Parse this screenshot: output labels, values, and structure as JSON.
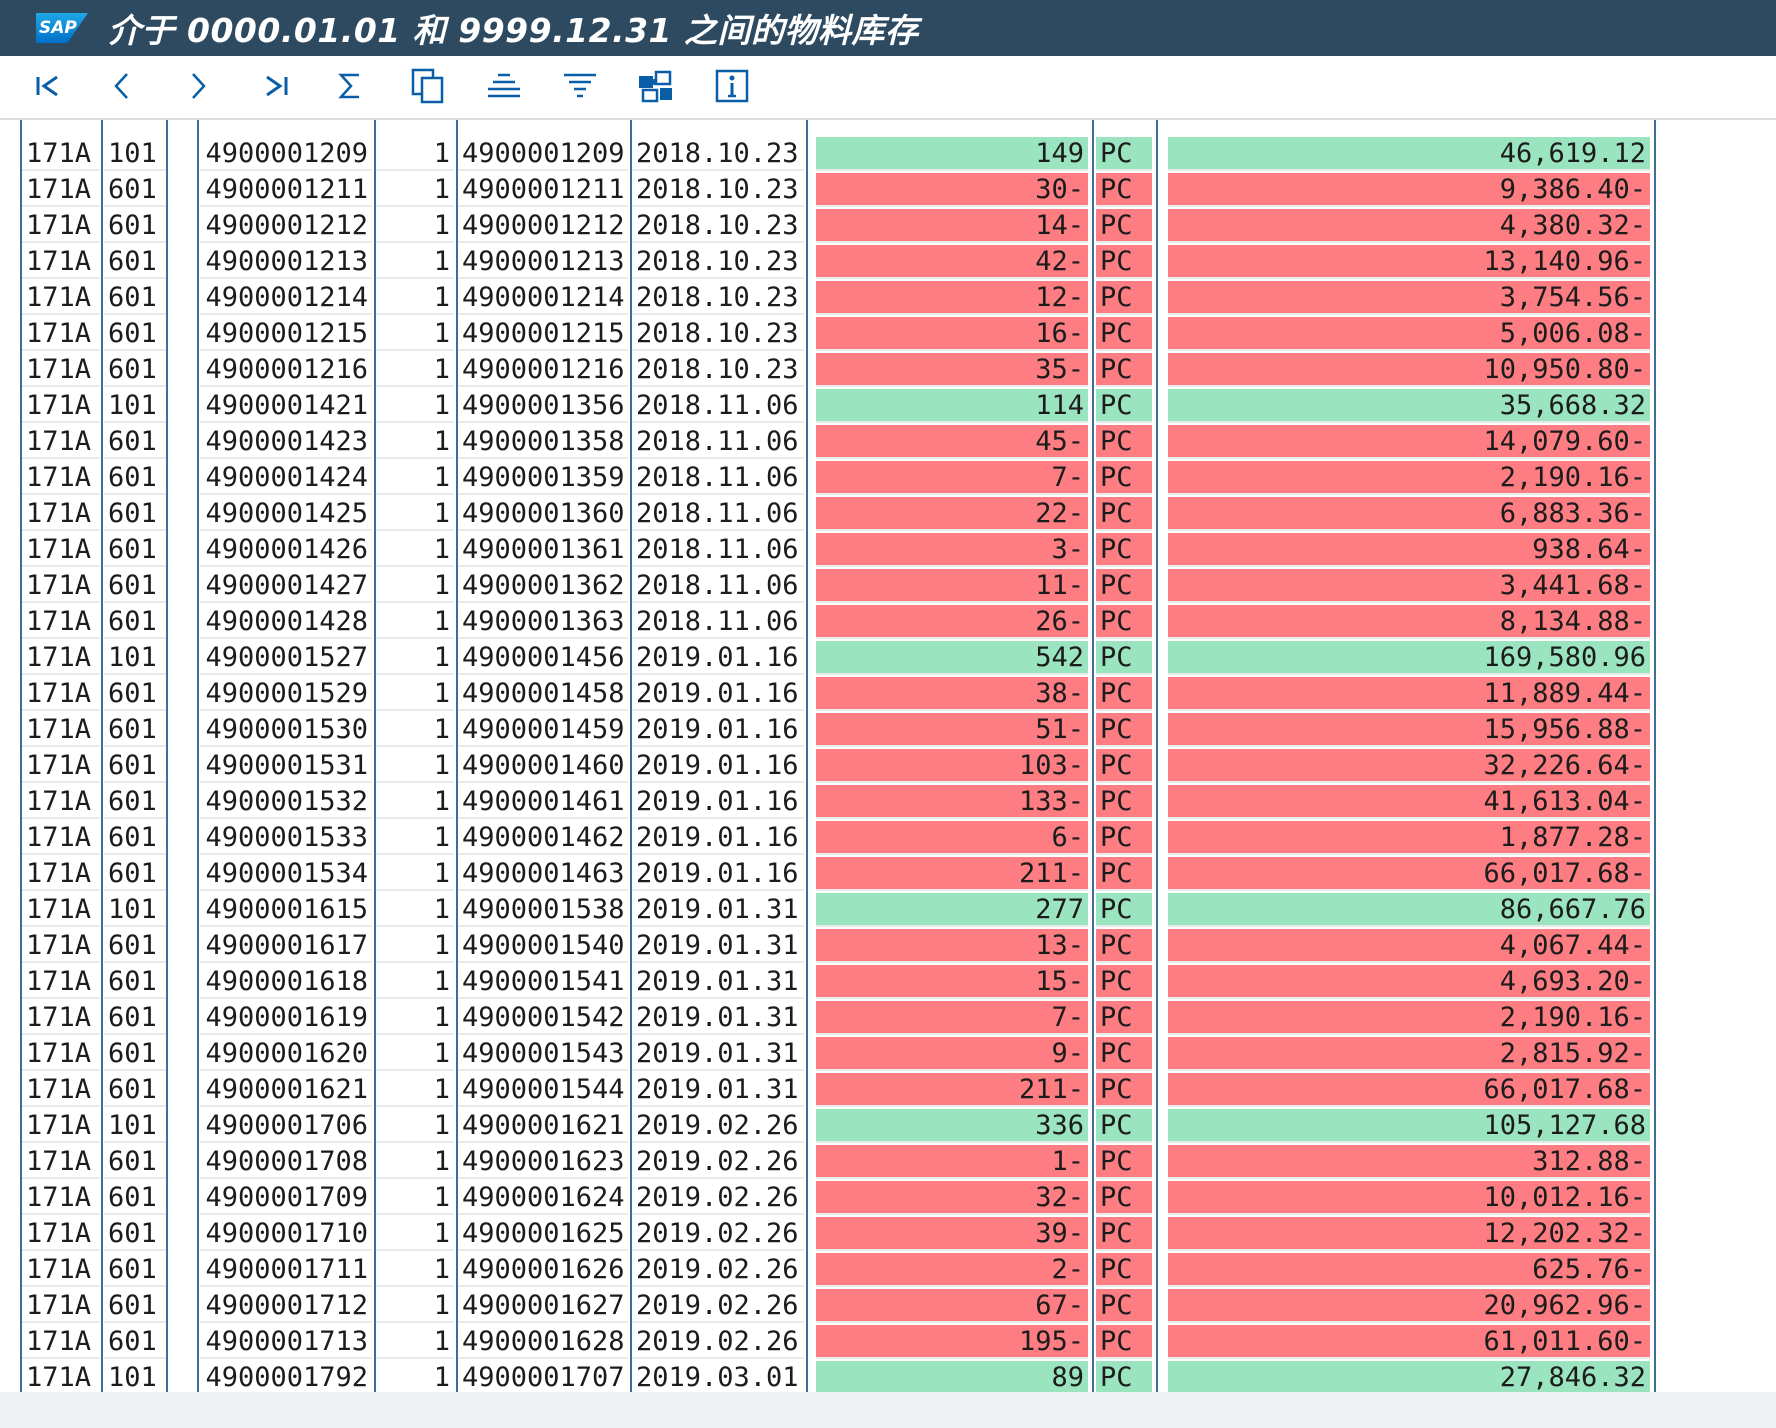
{
  "window": {
    "logo_text": "SAP",
    "title": "介于 0000.01.01 和 9999.12.31 之间的物料库存"
  },
  "toolbar": {
    "buttons": [
      {
        "name": "first-page-button",
        "icon": "first-page-icon"
      },
      {
        "name": "previous-page-button",
        "icon": "previous-page-icon"
      },
      {
        "name": "next-page-button",
        "icon": "next-page-icon"
      },
      {
        "name": "last-page-button",
        "icon": "last-page-icon"
      },
      {
        "name": "sum-button",
        "icon": "sigma-icon"
      },
      {
        "name": "copy-button",
        "icon": "copy-icon"
      },
      {
        "name": "center-align-button",
        "icon": "center-align-icon"
      },
      {
        "name": "filter-button",
        "icon": "filter-icon"
      },
      {
        "name": "layout-button",
        "icon": "layout-puzzle-icon"
      },
      {
        "name": "info-button",
        "icon": "info-icon"
      }
    ]
  },
  "colors": {
    "positive_row": "#9be4c0",
    "negative_row": "#fd7d82",
    "title_bar": "#2d4a60",
    "accent": "#0a5ea8"
  },
  "rows": [
    {
      "plant": "171A",
      "mvt": "101",
      "doc": "4900001209",
      "item": "1",
      "ref": "4900001209",
      "date": "2018.10.23",
      "qty": "149",
      "unit": "PC",
      "amount": "46,619.12",
      "sign": "pos"
    },
    {
      "plant": "171A",
      "mvt": "601",
      "doc": "4900001211",
      "item": "1",
      "ref": "4900001211",
      "date": "2018.10.23",
      "qty": "30-",
      "unit": "PC",
      "amount": "9,386.40-",
      "sign": "neg"
    },
    {
      "plant": "171A",
      "mvt": "601",
      "doc": "4900001212",
      "item": "1",
      "ref": "4900001212",
      "date": "2018.10.23",
      "qty": "14-",
      "unit": "PC",
      "amount": "4,380.32-",
      "sign": "neg"
    },
    {
      "plant": "171A",
      "mvt": "601",
      "doc": "4900001213",
      "item": "1",
      "ref": "4900001213",
      "date": "2018.10.23",
      "qty": "42-",
      "unit": "PC",
      "amount": "13,140.96-",
      "sign": "neg"
    },
    {
      "plant": "171A",
      "mvt": "601",
      "doc": "4900001214",
      "item": "1",
      "ref": "4900001214",
      "date": "2018.10.23",
      "qty": "12-",
      "unit": "PC",
      "amount": "3,754.56-",
      "sign": "neg"
    },
    {
      "plant": "171A",
      "mvt": "601",
      "doc": "4900001215",
      "item": "1",
      "ref": "4900001215",
      "date": "2018.10.23",
      "qty": "16-",
      "unit": "PC",
      "amount": "5,006.08-",
      "sign": "neg"
    },
    {
      "plant": "171A",
      "mvt": "601",
      "doc": "4900001216",
      "item": "1",
      "ref": "4900001216",
      "date": "2018.10.23",
      "qty": "35-",
      "unit": "PC",
      "amount": "10,950.80-",
      "sign": "neg"
    },
    {
      "plant": "171A",
      "mvt": "101",
      "doc": "4900001421",
      "item": "1",
      "ref": "4900001356",
      "date": "2018.11.06",
      "qty": "114",
      "unit": "PC",
      "amount": "35,668.32",
      "sign": "pos"
    },
    {
      "plant": "171A",
      "mvt": "601",
      "doc": "4900001423",
      "item": "1",
      "ref": "4900001358",
      "date": "2018.11.06",
      "qty": "45-",
      "unit": "PC",
      "amount": "14,079.60-",
      "sign": "neg"
    },
    {
      "plant": "171A",
      "mvt": "601",
      "doc": "4900001424",
      "item": "1",
      "ref": "4900001359",
      "date": "2018.11.06",
      "qty": "7-",
      "unit": "PC",
      "amount": "2,190.16-",
      "sign": "neg"
    },
    {
      "plant": "171A",
      "mvt": "601",
      "doc": "4900001425",
      "item": "1",
      "ref": "4900001360",
      "date": "2018.11.06",
      "qty": "22-",
      "unit": "PC",
      "amount": "6,883.36-",
      "sign": "neg"
    },
    {
      "plant": "171A",
      "mvt": "601",
      "doc": "4900001426",
      "item": "1",
      "ref": "4900001361",
      "date": "2018.11.06",
      "qty": "3-",
      "unit": "PC",
      "amount": "938.64-",
      "sign": "neg"
    },
    {
      "plant": "171A",
      "mvt": "601",
      "doc": "4900001427",
      "item": "1",
      "ref": "4900001362",
      "date": "2018.11.06",
      "qty": "11-",
      "unit": "PC",
      "amount": "3,441.68-",
      "sign": "neg"
    },
    {
      "plant": "171A",
      "mvt": "601",
      "doc": "4900001428",
      "item": "1",
      "ref": "4900001363",
      "date": "2018.11.06",
      "qty": "26-",
      "unit": "PC",
      "amount": "8,134.88-",
      "sign": "neg"
    },
    {
      "plant": "171A",
      "mvt": "101",
      "doc": "4900001527",
      "item": "1",
      "ref": "4900001456",
      "date": "2019.01.16",
      "qty": "542",
      "unit": "PC",
      "amount": "169,580.96",
      "sign": "pos"
    },
    {
      "plant": "171A",
      "mvt": "601",
      "doc": "4900001529",
      "item": "1",
      "ref": "4900001458",
      "date": "2019.01.16",
      "qty": "38-",
      "unit": "PC",
      "amount": "11,889.44-",
      "sign": "neg"
    },
    {
      "plant": "171A",
      "mvt": "601",
      "doc": "4900001530",
      "item": "1",
      "ref": "4900001459",
      "date": "2019.01.16",
      "qty": "51-",
      "unit": "PC",
      "amount": "15,956.88-",
      "sign": "neg"
    },
    {
      "plant": "171A",
      "mvt": "601",
      "doc": "4900001531",
      "item": "1",
      "ref": "4900001460",
      "date": "2019.01.16",
      "qty": "103-",
      "unit": "PC",
      "amount": "32,226.64-",
      "sign": "neg"
    },
    {
      "plant": "171A",
      "mvt": "601",
      "doc": "4900001532",
      "item": "1",
      "ref": "4900001461",
      "date": "2019.01.16",
      "qty": "133-",
      "unit": "PC",
      "amount": "41,613.04-",
      "sign": "neg"
    },
    {
      "plant": "171A",
      "mvt": "601",
      "doc": "4900001533",
      "item": "1",
      "ref": "4900001462",
      "date": "2019.01.16",
      "qty": "6-",
      "unit": "PC",
      "amount": "1,877.28-",
      "sign": "neg"
    },
    {
      "plant": "171A",
      "mvt": "601",
      "doc": "4900001534",
      "item": "1",
      "ref": "4900001463",
      "date": "2019.01.16",
      "qty": "211-",
      "unit": "PC",
      "amount": "66,017.68-",
      "sign": "neg"
    },
    {
      "plant": "171A",
      "mvt": "101",
      "doc": "4900001615",
      "item": "1",
      "ref": "4900001538",
      "date": "2019.01.31",
      "qty": "277",
      "unit": "PC",
      "amount": "86,667.76",
      "sign": "pos"
    },
    {
      "plant": "171A",
      "mvt": "601",
      "doc": "4900001617",
      "item": "1",
      "ref": "4900001540",
      "date": "2019.01.31",
      "qty": "13-",
      "unit": "PC",
      "amount": "4,067.44-",
      "sign": "neg"
    },
    {
      "plant": "171A",
      "mvt": "601",
      "doc": "4900001618",
      "item": "1",
      "ref": "4900001541",
      "date": "2019.01.31",
      "qty": "15-",
      "unit": "PC",
      "amount": "4,693.20-",
      "sign": "neg"
    },
    {
      "plant": "171A",
      "mvt": "601",
      "doc": "4900001619",
      "item": "1",
      "ref": "4900001542",
      "date": "2019.01.31",
      "qty": "7-",
      "unit": "PC",
      "amount": "2,190.16-",
      "sign": "neg"
    },
    {
      "plant": "171A",
      "mvt": "601",
      "doc": "4900001620",
      "item": "1",
      "ref": "4900001543",
      "date": "2019.01.31",
      "qty": "9-",
      "unit": "PC",
      "amount": "2,815.92-",
      "sign": "neg"
    },
    {
      "plant": "171A",
      "mvt": "601",
      "doc": "4900001621",
      "item": "1",
      "ref": "4900001544",
      "date": "2019.01.31",
      "qty": "211-",
      "unit": "PC",
      "amount": "66,017.68-",
      "sign": "neg"
    },
    {
      "plant": "171A",
      "mvt": "101",
      "doc": "4900001706",
      "item": "1",
      "ref": "4900001621",
      "date": "2019.02.26",
      "qty": "336",
      "unit": "PC",
      "amount": "105,127.68",
      "sign": "pos"
    },
    {
      "plant": "171A",
      "mvt": "601",
      "doc": "4900001708",
      "item": "1",
      "ref": "4900001623",
      "date": "2019.02.26",
      "qty": "1-",
      "unit": "PC",
      "amount": "312.88-",
      "sign": "neg"
    },
    {
      "plant": "171A",
      "mvt": "601",
      "doc": "4900001709",
      "item": "1",
      "ref": "4900001624",
      "date": "2019.02.26",
      "qty": "32-",
      "unit": "PC",
      "amount": "10,012.16-",
      "sign": "neg"
    },
    {
      "plant": "171A",
      "mvt": "601",
      "doc": "4900001710",
      "item": "1",
      "ref": "4900001625",
      "date": "2019.02.26",
      "qty": "39-",
      "unit": "PC",
      "amount": "12,202.32-",
      "sign": "neg"
    },
    {
      "plant": "171A",
      "mvt": "601",
      "doc": "4900001711",
      "item": "1",
      "ref": "4900001626",
      "date": "2019.02.26",
      "qty": "2-",
      "unit": "PC",
      "amount": "625.76-",
      "sign": "neg"
    },
    {
      "plant": "171A",
      "mvt": "601",
      "doc": "4900001712",
      "item": "1",
      "ref": "4900001627",
      "date": "2019.02.26",
      "qty": "67-",
      "unit": "PC",
      "amount": "20,962.96-",
      "sign": "neg"
    },
    {
      "plant": "171A",
      "mvt": "601",
      "doc": "4900001713",
      "item": "1",
      "ref": "4900001628",
      "date": "2019.02.26",
      "qty": "195-",
      "unit": "PC",
      "amount": "61,011.60-",
      "sign": "neg"
    },
    {
      "plant": "171A",
      "mvt": "101",
      "doc": "4900001792",
      "item": "1",
      "ref": "4900001707",
      "date": "2019.03.01",
      "qty": "89",
      "unit": "PC",
      "amount": "27,846.32",
      "sign": "pos"
    }
  ]
}
